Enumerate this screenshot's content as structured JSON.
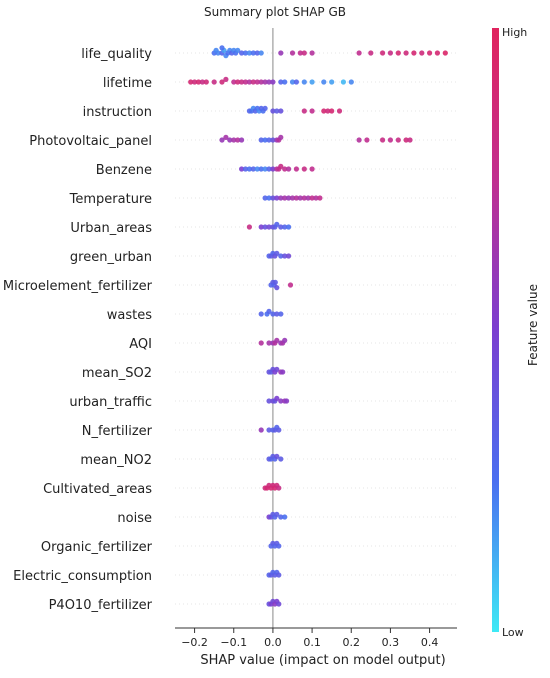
{
  "chart_data": {
    "type": "scatter",
    "subtype": "shap-summary-beeswarm",
    "title": "Summary plot SHAP GB",
    "xlabel": "SHAP value (impact on model output)",
    "xlim": [
      -0.25,
      0.47
    ],
    "xticks": [
      -0.2,
      -0.1,
      0.0,
      0.1,
      0.2,
      0.3,
      0.4
    ],
    "xtick_labels": [
      "−0.2",
      "−0.1",
      "0.0",
      "0.1",
      "0.2",
      "0.3",
      "0.4"
    ],
    "grid": false,
    "colorbar": {
      "label": "Feature value",
      "high_label": "High",
      "low_label": "Low",
      "placement": "right",
      "colors": [
        "#3ee9f5",
        "#4a6ff0",
        "#7b3fd0",
        "#c12f8f",
        "#e0245e"
      ]
    },
    "features": [
      {
        "name": "life_quality",
        "points": [
          [
            -0.14,
            0.2
          ],
          [
            -0.13,
            0.3
          ],
          [
            -0.125,
            0.15
          ],
          [
            -0.12,
            0.2
          ],
          [
            -0.115,
            0.25
          ],
          [
            -0.11,
            0.2
          ],
          [
            -0.105,
            0.3
          ],
          [
            -0.1,
            0.2
          ],
          [
            -0.095,
            0.25
          ],
          [
            -0.09,
            0.2
          ],
          [
            -0.08,
            0.3
          ],
          [
            -0.07,
            0.25
          ],
          [
            -0.06,
            0.2
          ],
          [
            -0.05,
            0.25
          ],
          [
            -0.04,
            0.3
          ],
          [
            -0.03,
            0.2
          ],
          [
            -0.15,
            0.25
          ],
          [
            -0.145,
            0.2
          ],
          [
            -0.13,
            0.25
          ],
          [
            0.02,
            0.6
          ],
          [
            0.05,
            0.7
          ],
          [
            0.07,
            0.75
          ],
          [
            0.08,
            0.8
          ],
          [
            0.1,
            0.7
          ],
          [
            0.22,
            0.75
          ],
          [
            0.25,
            0.8
          ],
          [
            0.28,
            0.85
          ],
          [
            0.3,
            0.8
          ],
          [
            0.32,
            0.9
          ],
          [
            0.34,
            0.85
          ],
          [
            0.36,
            0.9
          ],
          [
            0.38,
            0.85
          ],
          [
            0.4,
            0.9
          ],
          [
            0.42,
            0.9
          ],
          [
            0.44,
            0.95
          ]
        ]
      },
      {
        "name": "lifetime",
        "points": [
          [
            -0.21,
            0.9
          ],
          [
            -0.2,
            0.85
          ],
          [
            -0.19,
            0.9
          ],
          [
            -0.18,
            0.8
          ],
          [
            -0.17,
            0.85
          ],
          [
            -0.15,
            0.8
          ],
          [
            -0.13,
            0.85
          ],
          [
            -0.12,
            0.8
          ],
          [
            -0.1,
            0.75
          ],
          [
            -0.09,
            0.85
          ],
          [
            -0.08,
            0.8
          ],
          [
            -0.07,
            0.75
          ],
          [
            -0.06,
            0.7
          ],
          [
            -0.05,
            0.8
          ],
          [
            -0.04,
            0.75
          ],
          [
            -0.03,
            0.7
          ],
          [
            -0.02,
            0.65
          ],
          [
            -0.01,
            0.6
          ],
          [
            0.0,
            0.55
          ],
          [
            0.02,
            0.3
          ],
          [
            0.03,
            0.25
          ],
          [
            0.05,
            0.2
          ],
          [
            0.06,
            0.3
          ],
          [
            0.08,
            0.2
          ],
          [
            0.1,
            0.15
          ],
          [
            0.13,
            0.2
          ],
          [
            0.15,
            0.15
          ],
          [
            0.18,
            0.1
          ],
          [
            0.2,
            0.2
          ]
        ]
      },
      {
        "name": "instruction",
        "points": [
          [
            -0.06,
            0.3
          ],
          [
            -0.055,
            0.25
          ],
          [
            -0.05,
            0.2
          ],
          [
            -0.045,
            0.3
          ],
          [
            -0.04,
            0.25
          ],
          [
            -0.035,
            0.2
          ],
          [
            -0.03,
            0.3
          ],
          [
            -0.025,
            0.25
          ],
          [
            -0.02,
            0.3
          ],
          [
            0.0,
            0.4
          ],
          [
            0.01,
            0.35
          ],
          [
            0.02,
            0.4
          ],
          [
            0.08,
            0.8
          ],
          [
            0.1,
            0.75
          ],
          [
            0.13,
            0.9
          ],
          [
            0.14,
            0.85
          ],
          [
            0.15,
            0.9
          ],
          [
            0.17,
            0.85
          ]
        ]
      },
      {
        "name": "Photovoltaic_panel",
        "points": [
          [
            -0.13,
            0.6
          ],
          [
            -0.12,
            0.65
          ],
          [
            -0.11,
            0.6
          ],
          [
            -0.1,
            0.65
          ],
          [
            -0.09,
            0.7
          ],
          [
            -0.08,
            0.6
          ],
          [
            -0.03,
            0.3
          ],
          [
            -0.02,
            0.25
          ],
          [
            -0.01,
            0.3
          ],
          [
            0.0,
            0.4
          ],
          [
            0.01,
            0.6
          ],
          [
            0.015,
            0.7
          ],
          [
            0.02,
            0.65
          ],
          [
            0.22,
            0.7
          ],
          [
            0.24,
            0.75
          ],
          [
            0.28,
            0.8
          ],
          [
            0.3,
            0.75
          ],
          [
            0.32,
            0.8
          ],
          [
            0.34,
            0.85
          ],
          [
            0.35,
            0.8
          ]
        ]
      },
      {
        "name": "Benzene",
        "points": [
          [
            -0.08,
            0.5
          ],
          [
            -0.07,
            0.3
          ],
          [
            -0.06,
            0.25
          ],
          [
            -0.05,
            0.3
          ],
          [
            -0.04,
            0.2
          ],
          [
            -0.03,
            0.25
          ],
          [
            -0.02,
            0.2
          ],
          [
            -0.01,
            0.3
          ],
          [
            0.0,
            0.5
          ],
          [
            0.01,
            0.7
          ],
          [
            0.015,
            0.75
          ],
          [
            0.02,
            0.8
          ],
          [
            0.03,
            0.75
          ],
          [
            0.04,
            0.7
          ],
          [
            0.06,
            0.75
          ],
          [
            0.08,
            0.8
          ],
          [
            0.1,
            0.75
          ]
        ]
      },
      {
        "name": "Temperature",
        "points": [
          [
            -0.02,
            0.3
          ],
          [
            -0.01,
            0.25
          ],
          [
            0.0,
            0.4
          ],
          [
            0.01,
            0.5
          ],
          [
            0.02,
            0.6
          ],
          [
            0.03,
            0.65
          ],
          [
            0.04,
            0.6
          ],
          [
            0.05,
            0.65
          ],
          [
            0.06,
            0.7
          ],
          [
            0.07,
            0.65
          ],
          [
            0.08,
            0.7
          ],
          [
            0.09,
            0.65
          ],
          [
            0.1,
            0.75
          ],
          [
            0.11,
            0.7
          ],
          [
            0.12,
            0.75
          ]
        ]
      },
      {
        "name": "Urban_areas",
        "points": [
          [
            -0.06,
            0.8
          ],
          [
            -0.03,
            0.5
          ],
          [
            -0.02,
            0.4
          ],
          [
            -0.01,
            0.45
          ],
          [
            0.0,
            0.4
          ],
          [
            0.005,
            0.35
          ],
          [
            0.01,
            0.3
          ],
          [
            0.02,
            0.35
          ],
          [
            0.03,
            0.3
          ],
          [
            0.04,
            0.25
          ]
        ]
      },
      {
        "name": "green_urban",
        "points": [
          [
            -0.01,
            0.3
          ],
          [
            -0.005,
            0.35
          ],
          [
            0.0,
            0.3
          ],
          [
            0.005,
            0.4
          ],
          [
            0.01,
            0.35
          ],
          [
            0.02,
            0.3
          ],
          [
            0.03,
            0.4
          ],
          [
            0.04,
            0.45
          ]
        ]
      },
      {
        "name": "Microelement_fertilizer",
        "points": [
          [
            -0.005,
            0.3
          ],
          [
            0.0,
            0.35
          ],
          [
            0.003,
            0.3
          ],
          [
            0.006,
            0.35
          ],
          [
            0.01,
            0.4
          ],
          [
            0.045,
            0.75
          ]
        ]
      },
      {
        "name": "wastes",
        "points": [
          [
            -0.03,
            0.3
          ],
          [
            -0.015,
            0.25
          ],
          [
            -0.01,
            0.3
          ],
          [
            0.0,
            0.3
          ],
          [
            0.01,
            0.35
          ],
          [
            0.02,
            0.3
          ]
        ]
      },
      {
        "name": "AQI",
        "points": [
          [
            -0.03,
            0.7
          ],
          [
            -0.01,
            0.65
          ],
          [
            0.0,
            0.6
          ],
          [
            0.005,
            0.7
          ],
          [
            0.01,
            0.65
          ],
          [
            0.02,
            0.6
          ],
          [
            0.025,
            0.65
          ],
          [
            0.03,
            0.6
          ]
        ]
      },
      {
        "name": "mean_SO2",
        "points": [
          [
            -0.01,
            0.4
          ],
          [
            -0.005,
            0.35
          ],
          [
            0.0,
            0.4
          ],
          [
            0.005,
            0.5
          ],
          [
            0.01,
            0.45
          ],
          [
            0.02,
            0.6
          ],
          [
            0.025,
            0.55
          ]
        ]
      },
      {
        "name": "urban_traffic",
        "points": [
          [
            -0.01,
            0.4
          ],
          [
            0.0,
            0.45
          ],
          [
            0.005,
            0.4
          ],
          [
            0.01,
            0.5
          ],
          [
            0.02,
            0.55
          ],
          [
            0.03,
            0.6
          ],
          [
            0.035,
            0.55
          ]
        ]
      },
      {
        "name": "N_fertilizer",
        "points": [
          [
            -0.03,
            0.6
          ],
          [
            -0.01,
            0.35
          ],
          [
            0.0,
            0.3
          ],
          [
            0.005,
            0.35
          ],
          [
            0.01,
            0.3
          ],
          [
            0.015,
            0.35
          ]
        ]
      },
      {
        "name": "mean_NO2",
        "points": [
          [
            -0.01,
            0.35
          ],
          [
            -0.005,
            0.3
          ],
          [
            0.0,
            0.35
          ],
          [
            0.005,
            0.3
          ],
          [
            0.01,
            0.4
          ],
          [
            0.02,
            0.35
          ]
        ]
      },
      {
        "name": "Cultivated_areas",
        "points": [
          [
            -0.02,
            0.85
          ],
          [
            -0.015,
            0.9
          ],
          [
            -0.01,
            0.85
          ],
          [
            -0.005,
            0.9
          ],
          [
            0.0,
            0.85
          ],
          [
            0.005,
            0.9
          ],
          [
            0.01,
            0.85
          ],
          [
            0.015,
            0.8
          ]
        ]
      },
      {
        "name": "noise",
        "points": [
          [
            -0.01,
            0.5
          ],
          [
            -0.005,
            0.4
          ],
          [
            0.0,
            0.35
          ],
          [
            0.005,
            0.3
          ],
          [
            0.01,
            0.35
          ],
          [
            0.02,
            0.3
          ],
          [
            0.03,
            0.25
          ]
        ]
      },
      {
        "name": "Organic_fertilizer",
        "points": [
          [
            -0.005,
            0.3
          ],
          [
            0.0,
            0.35
          ],
          [
            0.005,
            0.3
          ],
          [
            0.01,
            0.35
          ],
          [
            0.015,
            0.3
          ]
        ]
      },
      {
        "name": "Electric_consumption",
        "points": [
          [
            -0.01,
            0.3
          ],
          [
            -0.005,
            0.35
          ],
          [
            0.0,
            0.3
          ],
          [
            0.005,
            0.35
          ],
          [
            0.01,
            0.3
          ],
          [
            0.015,
            0.35
          ]
        ]
      },
      {
        "name": "P4O10_fertilizer",
        "points": [
          [
            -0.01,
            0.4
          ],
          [
            -0.005,
            0.5
          ],
          [
            0.0,
            0.45
          ],
          [
            0.005,
            0.55
          ],
          [
            0.01,
            0.5
          ],
          [
            0.015,
            0.45
          ]
        ]
      }
    ]
  }
}
